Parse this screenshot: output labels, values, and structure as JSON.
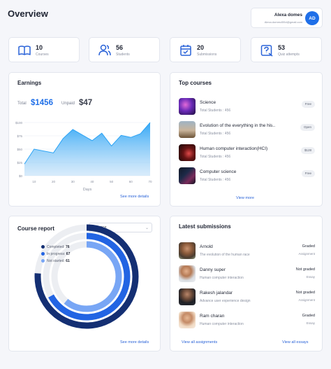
{
  "header": {
    "title": "Overview",
    "user": {
      "name": "Alexa domes",
      "email": "Alexa.domes455d@gmail.com",
      "initials": "AD"
    }
  },
  "stats": [
    {
      "value": "10",
      "label": "Courses",
      "icon": "book-icon"
    },
    {
      "value": "56",
      "label": "Students",
      "icon": "users-icon"
    },
    {
      "value": "20",
      "label": "Submissions",
      "icon": "calendar-check-icon"
    },
    {
      "value": "53",
      "label": "Quiz attempts",
      "icon": "quiz-icon"
    }
  ],
  "earnings": {
    "title": "Earnings",
    "total_label": "Total",
    "total": "$1456",
    "unpaid_label": "Unpaid",
    "unpaid": "$47",
    "link": "See more details"
  },
  "chart_data": {
    "type": "area",
    "x": [
      5,
      10,
      20,
      25,
      30,
      40,
      45,
      50,
      55,
      60,
      65,
      70
    ],
    "y": [
      22,
      50,
      43,
      70,
      87,
      66,
      80,
      56,
      76,
      72,
      79,
      100
    ],
    "xticks": [
      "10",
      "20",
      "30",
      "40",
      "50",
      "60",
      "70"
    ],
    "yticks": [
      "$0",
      "$25",
      "$50",
      "$75",
      "$100"
    ],
    "xlabel": "Days",
    "ylabel": "",
    "xlim": [
      5,
      70
    ],
    "ylim": [
      0,
      100
    ],
    "grid": true,
    "color": "#2aa3f5"
  },
  "top_courses": {
    "title": "Top courses",
    "link": "View more",
    "items": [
      {
        "name": "Science",
        "students": "Total Students : 456",
        "badge": "Free",
        "thumb": "purple"
      },
      {
        "name": "Evolution of the everything in the his..",
        "students": "Total Students : 456",
        "badge": "Open",
        "thumb": "desert"
      },
      {
        "name": "Human computer interaction(HCI)",
        "students": "Total Students : 456",
        "badge": "$128",
        "thumb": "dark-red"
      },
      {
        "name": "Computer science",
        "students": "Total Students : 456",
        "badge": "Free",
        "thumb": "circuit"
      }
    ]
  },
  "course_report": {
    "title": "Course report",
    "select_value": "Science",
    "link": "See more details",
    "legend": [
      {
        "label": "Completed:",
        "value": 76,
        "color": "#142f73"
      },
      {
        "label": "In progress:",
        "value": 67,
        "color": "#2264e3"
      },
      {
        "label": "Not started:",
        "value": 61,
        "color": "#78a6f5"
      }
    ]
  },
  "submissions": {
    "title": "Latest submissions",
    "link_left": "View all assignments",
    "link_right": "View all essays",
    "items": [
      {
        "name": "Arnold",
        "desc": "The evolution of the human race",
        "status": "Graded",
        "type": "Assignment"
      },
      {
        "name": "Danny super",
        "desc": "Human computer interaction",
        "status": "Not graded",
        "type": "Essay"
      },
      {
        "name": "Rakesh jalandar",
        "desc": "Advance user experience design",
        "status": "Not graded",
        "type": "Assignment"
      },
      {
        "name": "Ram charan",
        "desc": "Human computer interaction",
        "status": "Graded",
        "type": "Essay"
      }
    ]
  }
}
